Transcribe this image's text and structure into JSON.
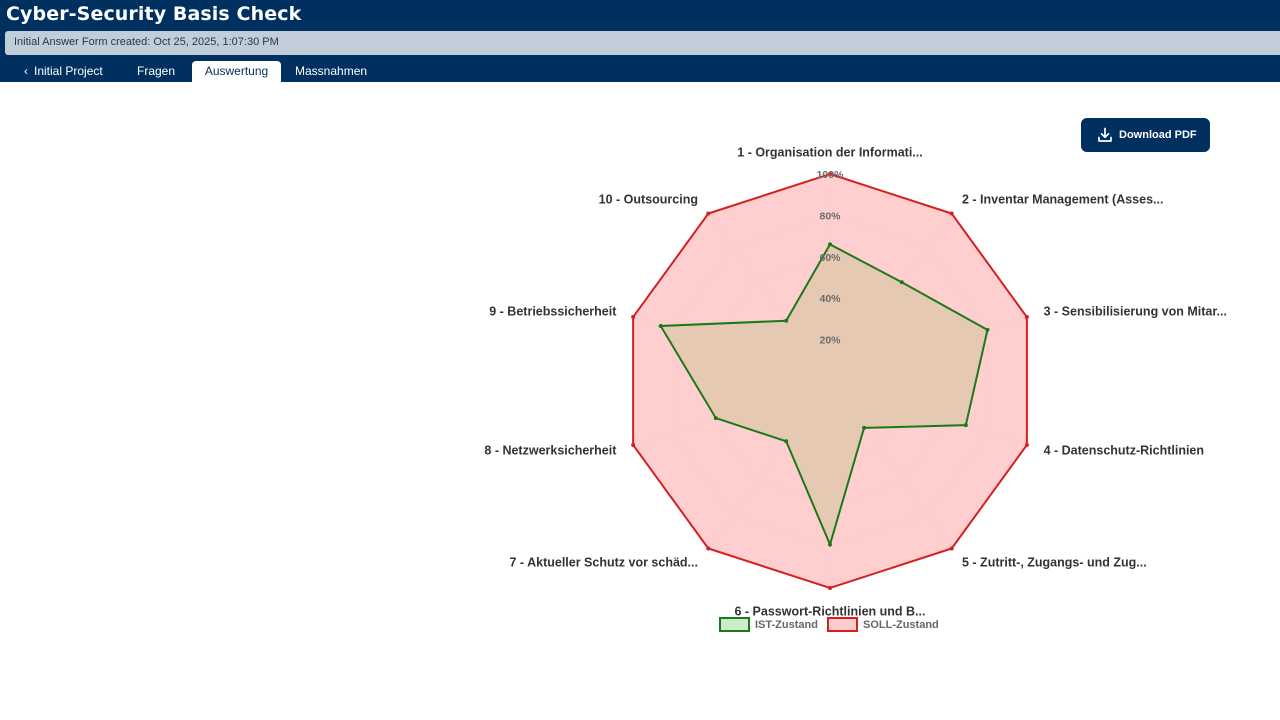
{
  "app": {
    "title": "Cyber-Security Basis Check",
    "info_text": "Initial Answer Form created: Oct 25, 2025, 1:07:30 PM"
  },
  "tabs": [
    {
      "label": "Initial Project",
      "icon": "chevron-left-icon"
    },
    {
      "label": "Fragen"
    },
    {
      "label": "Auswertung",
      "active": true
    },
    {
      "label": "Massnahmen"
    }
  ],
  "actions": {
    "download_label": "Download PDF",
    "download_icon": "download-icon"
  },
  "colors": {
    "header_bg": "#00305f",
    "ist_line": "#1a7a1a",
    "ist_fill": "#cdeccd",
    "soll_line": "#d42020",
    "soll_fill": "#ffcccc"
  },
  "chart_data": {
    "type": "radar",
    "labels": [
      "1 - Organisation der Informati...",
      "2 - Inventar Management (Asses...",
      "3 - Sensibilisierung von Mitar...",
      "4 - Datenschutz-Richtlinien",
      "5 - Zutritt-, Zugangs- und Zug...",
      "6 - Passwort-Richtlinien und B...",
      "7 - Aktueller Schutz vor schäd...",
      "8 - Netzwerksicherheit",
      "9 - Betriebssicherheit",
      "10 - Outsourcing"
    ],
    "ticks": [
      "20%",
      "40%",
      "60%",
      "80%",
      "100%"
    ],
    "range": [
      0,
      100
    ],
    "series": [
      {
        "name": "IST-Zustand",
        "values": [
          66,
          59,
          80,
          69,
          28,
          79,
          36,
          58,
          86,
          36
        ]
      },
      {
        "name": "SOLL-Zustand",
        "values": [
          100,
          100,
          100,
          100,
          100,
          100,
          100,
          100,
          100,
          100
        ]
      }
    ],
    "legend_position": "bottom"
  }
}
